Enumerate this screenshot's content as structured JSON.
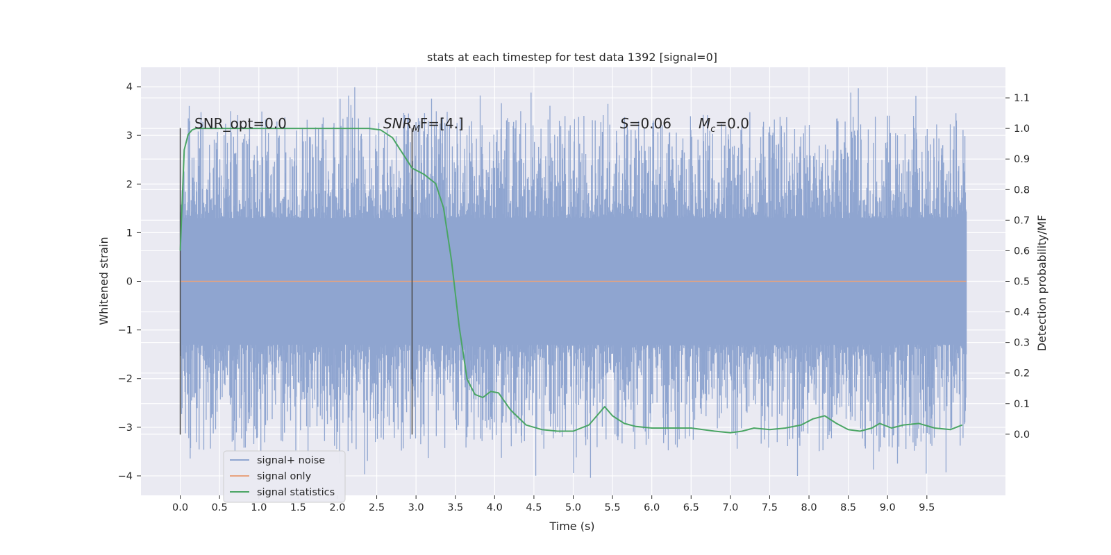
{
  "chart_data": {
    "type": "line",
    "title": "stats at each timestep for test data 1392 [signal=0]",
    "xlabel": "Time (s)",
    "ylabel_left": "Whitened strain",
    "ylabel_right": "Detection probability/MF",
    "xlim": [
      -0.5,
      10.5
    ],
    "ylim_left": [
      -4.4,
      4.4
    ],
    "ylim_right": [
      -0.2,
      1.2
    ],
    "x_ticks": [
      0.0,
      0.5,
      1.0,
      1.5,
      2.0,
      2.5,
      3.0,
      3.5,
      4.0,
      4.5,
      5.0,
      5.5,
      6.0,
      6.5,
      7.0,
      7.5,
      8.0,
      8.5,
      9.0,
      9.5
    ],
    "x_tick_labels": [
      "0.0",
      "0.5",
      "1.0",
      "1.5",
      "2.0",
      "2.5",
      "3.0",
      "3.5",
      "4.0",
      "4.5",
      "5.0",
      "5.5",
      "6.0",
      "6.5",
      "7.0",
      "7.5",
      "8.0",
      "8.5",
      "9.0",
      "9.5"
    ],
    "y_left_ticks": [
      4,
      3,
      2,
      1,
      0,
      -1,
      -2,
      -3,
      -4
    ],
    "y_left_tick_labels": [
      "4",
      "3",
      "2",
      "1",
      "0",
      "−1",
      "−2",
      "−3",
      "−4"
    ],
    "y_right_ticks": [
      1.1,
      1.0,
      0.9,
      0.8,
      0.7,
      0.6,
      0.5,
      0.4,
      0.3,
      0.2,
      0.1,
      0.0
    ],
    "y_right_tick_labels": [
      "1.1",
      "1.0",
      "0.9",
      "0.8",
      "0.7",
      "0.6",
      "0.5",
      "0.4",
      "0.3",
      "0.2",
      "0.1",
      "0.0"
    ],
    "grid": true,
    "legend_position": "lower-left",
    "annotations": {
      "snr_opt": "SNR_opt=0.0",
      "snr_mf_base": "SNR",
      "snr_mf_sub": "M",
      "snr_mf_rest": "F=[4.]",
      "s_base": "S",
      "s_rest": "=0.06",
      "mc_base": "M",
      "mc_sub": "c",
      "mc_rest": "=0.0"
    },
    "vertical_markers": {
      "axis": "left",
      "x": [
        0.0,
        2.95
      ],
      "ymin": -3.15,
      "ymax": 3.15,
      "color": "#4d4d4d"
    },
    "series": [
      {
        "name": "signal+ noise",
        "axis": "left",
        "color": "#8fa5d0",
        "x_range": [
          0.0,
          10.0
        ],
        "band_min": -1.3,
        "band_max": 1.3,
        "extreme_min": -4.05,
        "extreme_max": 4.05
      },
      {
        "name": "signal only",
        "axis": "left",
        "color": "#e8a27d",
        "x": [
          0.0,
          10.0
        ],
        "y": [
          0.0,
          0.0
        ]
      },
      {
        "name": "signal statistics",
        "axis": "right",
        "color": "#4aa564",
        "x": [
          0.0,
          0.05,
          0.1,
          0.15,
          0.2,
          0.3,
          0.5,
          1.0,
          1.5,
          2.0,
          2.4,
          2.55,
          2.7,
          2.85,
          2.95,
          3.1,
          3.25,
          3.35,
          3.45,
          3.55,
          3.65,
          3.75,
          3.85,
          3.95,
          4.05,
          4.2,
          4.4,
          4.6,
          4.8,
          5.0,
          5.2,
          5.3,
          5.4,
          5.5,
          5.65,
          5.8,
          6.0,
          6.2,
          6.5,
          6.8,
          7.0,
          7.15,
          7.3,
          7.5,
          7.7,
          7.9,
          8.05,
          8.2,
          8.35,
          8.5,
          8.65,
          8.8,
          8.9,
          9.05,
          9.2,
          9.4,
          9.6,
          9.8,
          9.95
        ],
        "y": [
          0.6,
          0.93,
          0.98,
          0.995,
          1.0,
          1.0,
          1.0,
          1.0,
          1.0,
          1.0,
          1.0,
          0.995,
          0.97,
          0.91,
          0.87,
          0.85,
          0.82,
          0.74,
          0.57,
          0.35,
          0.18,
          0.13,
          0.12,
          0.14,
          0.135,
          0.08,
          0.03,
          0.015,
          0.01,
          0.01,
          0.03,
          0.06,
          0.09,
          0.06,
          0.035,
          0.025,
          0.02,
          0.02,
          0.02,
          0.01,
          0.005,
          0.01,
          0.02,
          0.015,
          0.02,
          0.03,
          0.05,
          0.06,
          0.035,
          0.015,
          0.01,
          0.02,
          0.035,
          0.02,
          0.03,
          0.035,
          0.02,
          0.015,
          0.03
        ]
      }
    ]
  }
}
